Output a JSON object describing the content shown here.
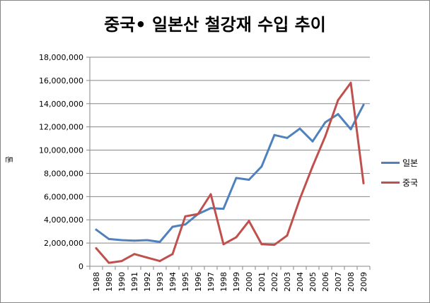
{
  "chart_data": {
    "type": "line",
    "title": "중국• 일본산 철강재 수입 추이",
    "xlabel": "",
    "ylabel": "톤",
    "categories": [
      "1988",
      "1989",
      "1990",
      "1991",
      "1992",
      "1993",
      "1994",
      "1995",
      "1996",
      "1997",
      "1998",
      "1999",
      "2000",
      "2001",
      "2002",
      "2003",
      "2004",
      "2005",
      "2006",
      "2007",
      "2008",
      "2009"
    ],
    "ylim": [
      0,
      18000000
    ],
    "yticks": [
      0,
      2000000,
      4000000,
      6000000,
      8000000,
      10000000,
      12000000,
      14000000,
      16000000,
      18000000
    ],
    "ytick_labels": [
      "0",
      "2,000,000",
      "4,000,000",
      "6,000,000",
      "8,000,000",
      "10,000,000",
      "12,000,000",
      "14,000,000",
      "16,000,000",
      "18,000,000"
    ],
    "grid": true,
    "legend_position": "right",
    "series": [
      {
        "name": "일본",
        "color": "#4F81BD",
        "values": [
          3150000,
          2350000,
          2250000,
          2200000,
          2250000,
          2100000,
          3400000,
          3600000,
          4500000,
          5000000,
          4950000,
          7600000,
          7450000,
          8600000,
          11300000,
          11050000,
          11850000,
          10750000,
          12400000,
          13100000,
          11800000,
          13900000
        ]
      },
      {
        "name": "중국",
        "color": "#C0504D",
        "values": [
          1550000,
          300000,
          450000,
          1050000,
          750000,
          450000,
          1050000,
          4300000,
          4500000,
          6200000,
          1900000,
          2500000,
          3900000,
          1900000,
          1850000,
          2650000,
          5800000,
          8600000,
          11200000,
          14300000,
          15800000,
          7150000
        ]
      }
    ]
  }
}
